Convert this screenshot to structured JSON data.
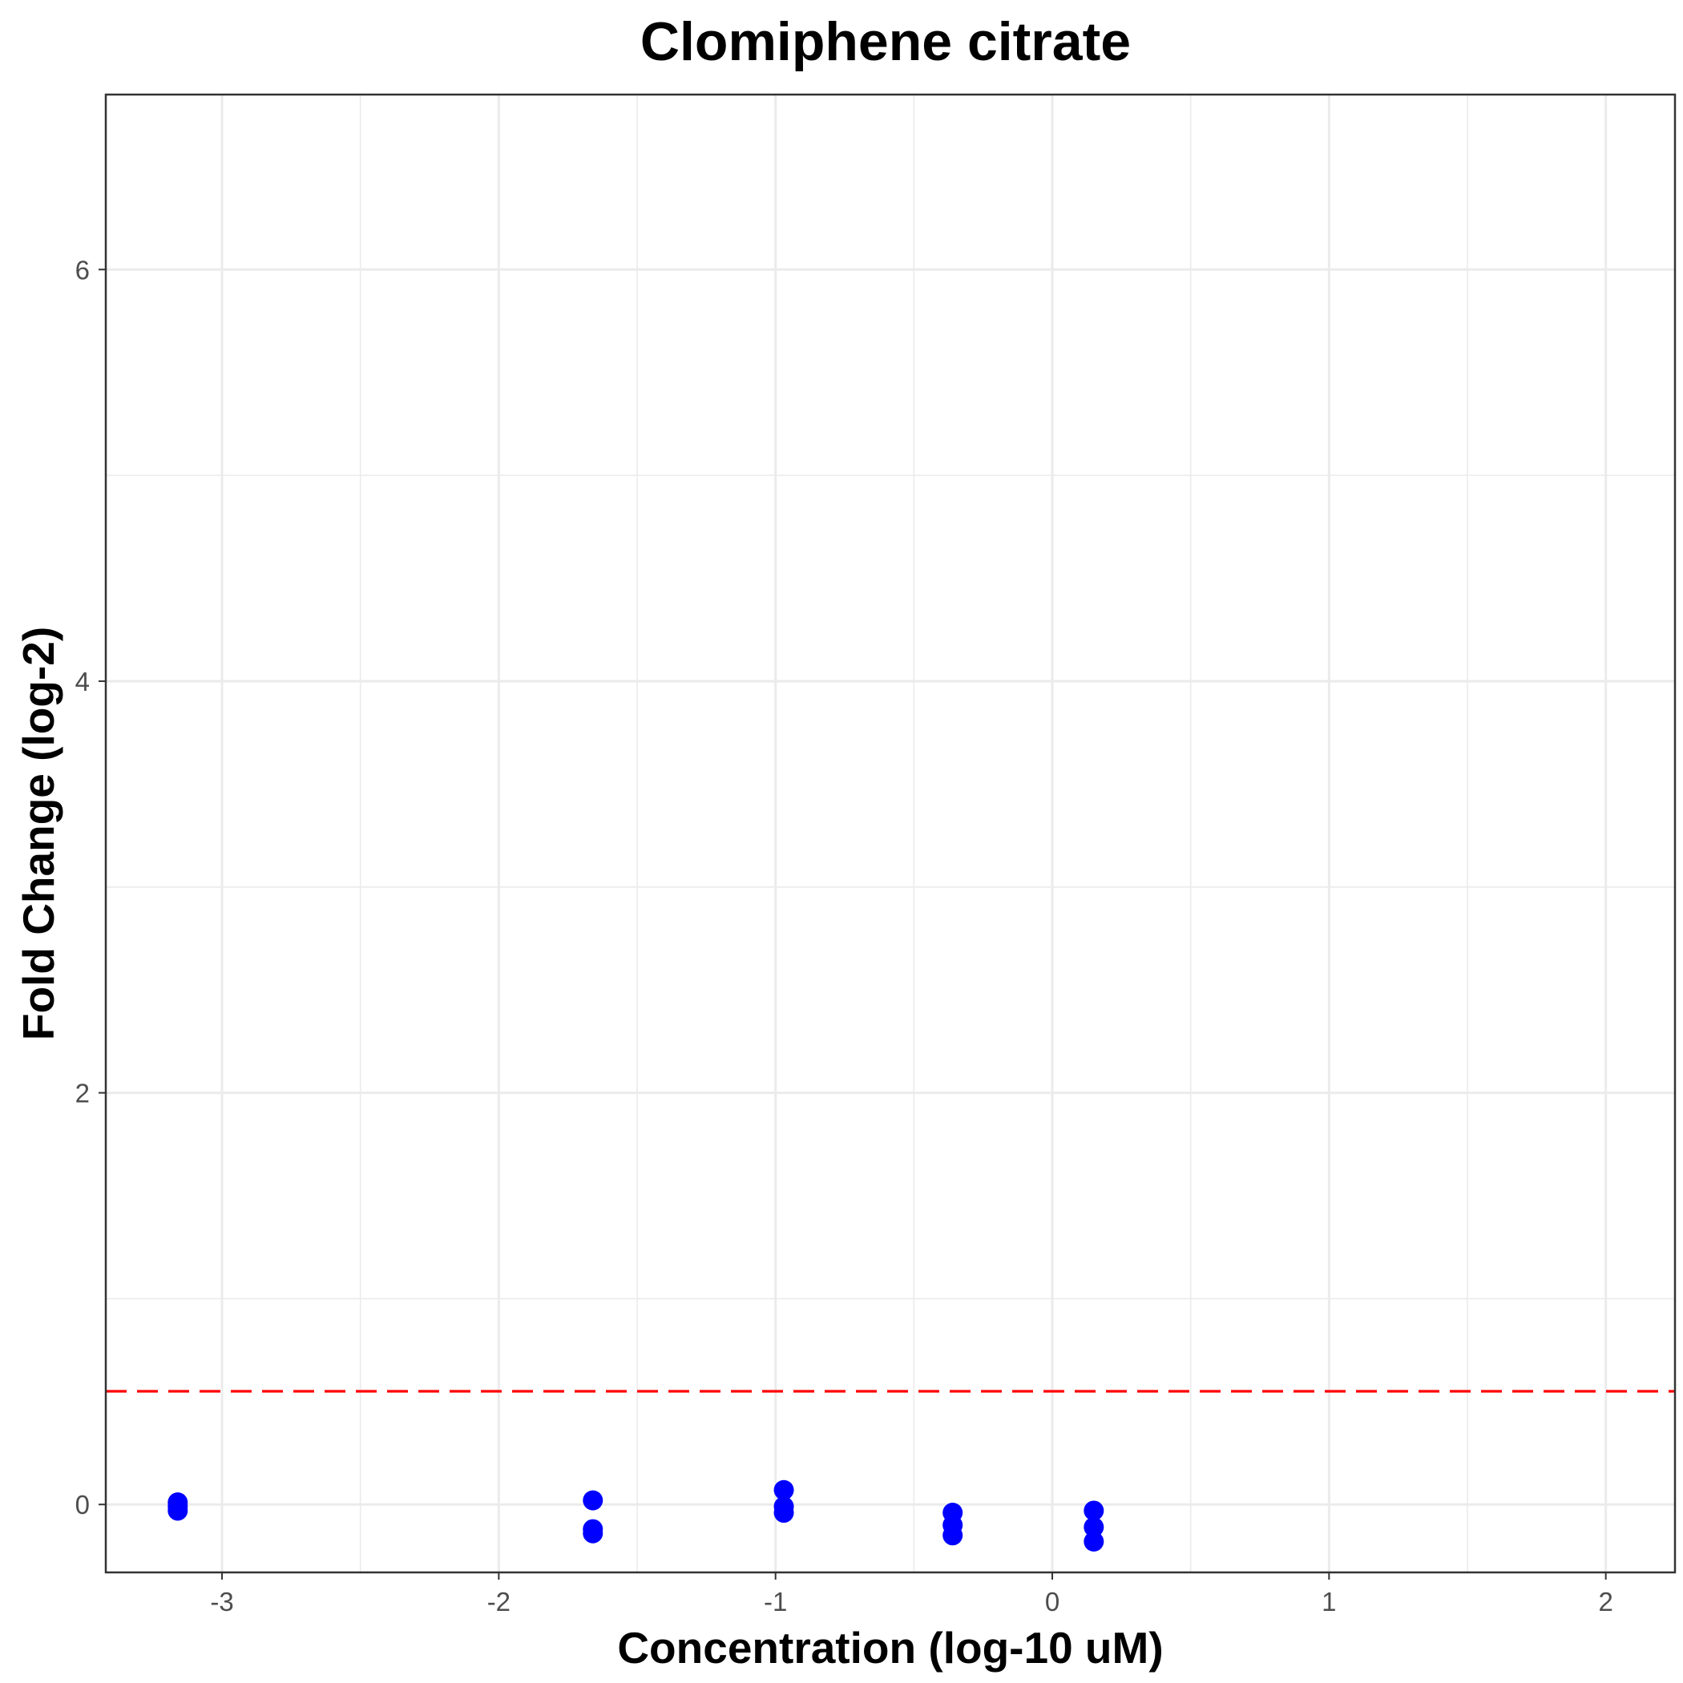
{
  "chart_data": {
    "type": "scatter",
    "title": "Clomiphene citrate",
    "xlabel": "Concentration (log-10 uM)",
    "ylabel": "Fold Change (log-2)",
    "xlim": [
      -3.42,
      2.25
    ],
    "ylim": [
      -0.33,
      6.85
    ],
    "x_ticks": [
      -3,
      -2,
      -1,
      0,
      1,
      2
    ],
    "x_tick_labels": [
      "-3",
      "-2",
      "-1",
      "0",
      "1",
      "2"
    ],
    "y_ticks": [
      0,
      2,
      4,
      6
    ],
    "y_tick_labels": [
      "0",
      "2",
      "4",
      "6"
    ],
    "grid": true,
    "series": [
      {
        "color": "#0000ff",
        "points": [
          {
            "x": -3.16,
            "y": 0.01
          },
          {
            "x": -3.16,
            "y": -0.01
          },
          {
            "x": -3.16,
            "y": -0.03
          },
          {
            "x": -1.66,
            "y": 0.02
          },
          {
            "x": -1.66,
            "y": -0.12
          },
          {
            "x": -1.66,
            "y": -0.14
          },
          {
            "x": -0.97,
            "y": 0.07
          },
          {
            "x": -0.97,
            "y": -0.01
          },
          {
            "x": -0.97,
            "y": -0.04
          },
          {
            "x": -0.36,
            "y": -0.04
          },
          {
            "x": -0.36,
            "y": -0.1
          },
          {
            "x": -0.36,
            "y": -0.15
          },
          {
            "x": 0.15,
            "y": -0.03
          },
          {
            "x": 0.15,
            "y": -0.11
          },
          {
            "x": 0.15,
            "y": -0.18
          }
        ]
      }
    ],
    "reference_line": {
      "orientation": "horizontal",
      "y": 0.55,
      "color": "#ff0000",
      "style": "dashed"
    }
  }
}
